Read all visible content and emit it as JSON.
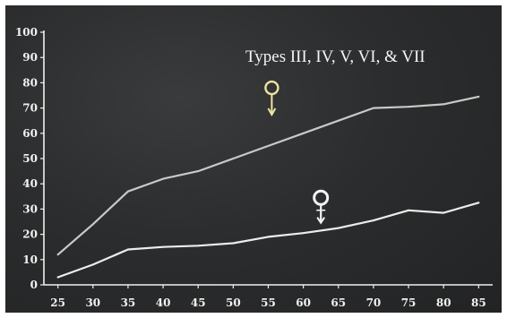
{
  "chart_data": {
    "type": "line",
    "title": "Types III, IV, V, VI, & VII",
    "xlabel": "",
    "ylabel": "",
    "x": [
      25,
      30,
      35,
      40,
      45,
      50,
      55,
      60,
      65,
      70,
      75,
      80,
      85
    ],
    "xticks": [
      "25",
      "30",
      "35",
      "40",
      "45",
      "50",
      "55",
      "60",
      "65",
      "70",
      "75",
      "80",
      "85"
    ],
    "yticks": [
      "0",
      "10",
      "20",
      "30",
      "40",
      "50",
      "60",
      "70",
      "80",
      "90",
      "100"
    ],
    "ylim": [
      0,
      100
    ],
    "xlim": [
      23,
      87
    ],
    "grid": false,
    "legend": "none",
    "series": [
      {
        "symbol": "male-symbol",
        "values": [
          12,
          24,
          37,
          42,
          45,
          50,
          55,
          60,
          65,
          70,
          70.5,
          71.5,
          74.5
        ],
        "color": "#c9c9c9"
      },
      {
        "symbol": "female-symbol",
        "values": [
          3,
          8,
          14,
          15,
          15.5,
          16.5,
          19,
          20.5,
          22.5,
          25.5,
          29.5,
          28.5,
          32.5
        ],
        "color": "#ededed"
      }
    ],
    "colors": {
      "background": "#2c2d2e",
      "axis": "#f0f0f0",
      "text": "#f2f2f2",
      "male_symbol": "#f0e3a0",
      "female_symbol": "#f4f4f4"
    }
  }
}
